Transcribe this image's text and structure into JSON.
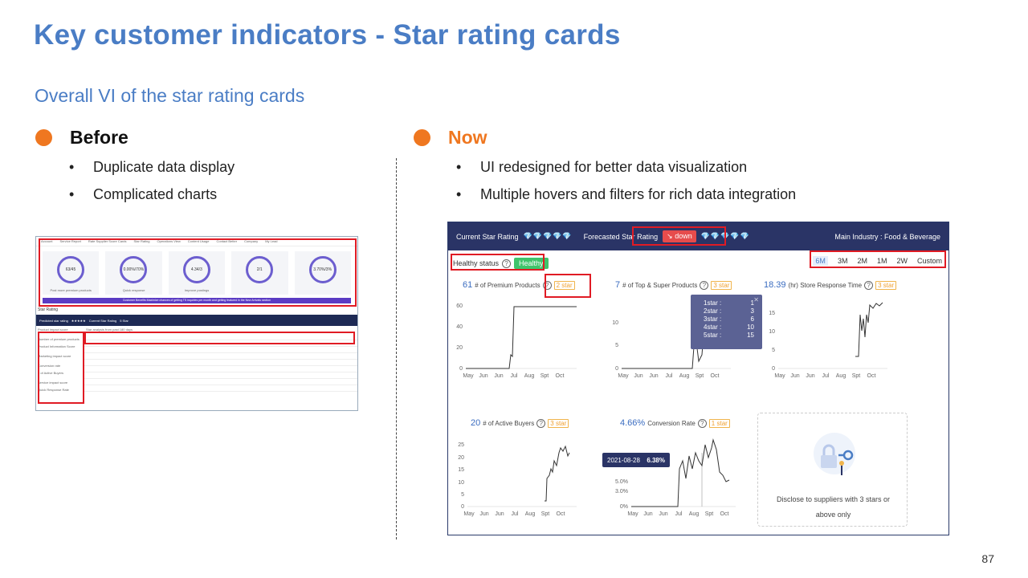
{
  "slide": {
    "title": "Key customer indicators - Star rating cards",
    "subtitle": "Overall VI of the star rating cards",
    "page_number": "87"
  },
  "before": {
    "heading": "Before",
    "bullets": [
      "Duplicate data display",
      "Complicated charts"
    ],
    "screenshot": {
      "nav": [
        "Account",
        "Service Report",
        "Rate Supplier Score Cards",
        "Star Rating",
        "Operations View",
        "Content Usage",
        "Contact Better",
        "Company",
        "My Lead"
      ],
      "kpis": [
        {
          "value": "63/45",
          "label": "Post more premium products"
        },
        {
          "value": "0.00%/70%",
          "label": "Quick response"
        },
        {
          "value": "4.34/3",
          "label": "Improve postings"
        },
        {
          "value": "2/1",
          "label": ""
        },
        {
          "value": "3.70%/3%",
          "label": ""
        }
      ],
      "banner": "Customer Benefits Maximize chances of getting TS inquiries per month and getting featured in the New Arrivals section",
      "section_title": "Star Rating",
      "predicted_label": "Predicted star rating",
      "predicted_stars": "★★★★★",
      "current_label": "Current Star Rating",
      "current_value": "5 Star",
      "left_items": [
        "Product impact score",
        "Number of premium products",
        "Product Information Score",
        "Marketing impact score",
        "Conversion rate",
        "# of Active Buyers",
        "Service impact score",
        "Quick Response Rate"
      ],
      "table_title": "Star analysis from past 180 days"
    }
  },
  "now": {
    "heading": "Now",
    "bullets": [
      "UI redesigned for better data visualization",
      "Multiple hovers and filters for rich data integration"
    ],
    "screenshot": {
      "current_label": "Current Star Rating",
      "current_diamonds_on": "💎💎",
      "current_diamonds_off": "💎💎💎",
      "forecast_label": "Forecasted Star Rating",
      "down_label": "down",
      "forecast_diamonds_on": "💎",
      "forecast_diamonds_off": "💎💎💎💎",
      "industry": "Main Industry : Food & Beverage",
      "healthy_label": "Healthy status",
      "healthy_badge": "Healthy",
      "filters": [
        "6M",
        "3M",
        "2M",
        "1M",
        "2W",
        "Custom"
      ],
      "tooltip": {
        "rows": [
          {
            "k": "1star :",
            "v": "1"
          },
          {
            "k": "2star :",
            "v": "3"
          },
          {
            "k": "3star :",
            "v": "6"
          },
          {
            "k": "4star :",
            "v": "10"
          },
          {
            "k": "5star :",
            "v": "15"
          }
        ]
      },
      "tooltip2": {
        "date": "2021-08-28",
        "value": "6.38%"
      },
      "disclose_msg": "Disclose to suppliers with 3 stars or above only",
      "months": [
        "May",
        "Jun",
        "Jun",
        "Jul",
        "Aug",
        "Spt",
        "Oct"
      ],
      "cards": [
        {
          "value": "61",
          "label": "# of Premium Products",
          "star": "2 star",
          "yticks": [
            "60",
            "40",
            "20",
            "0"
          ]
        },
        {
          "value": "7",
          "label": "# of Top & Super Products",
          "star": "3 star",
          "yticks": [
            "10",
            "5",
            "0"
          ]
        },
        {
          "value": "18.39",
          "label": "(hr) Store Response Time",
          "star": "3 star",
          "yticks": [
            "15",
            "10",
            "5",
            "0"
          ]
        },
        {
          "value": "20",
          "label": "# of Active Buyers",
          "star": "3 star",
          "yticks": [
            "25",
            "20",
            "15",
            "10",
            "5",
            "0"
          ]
        },
        {
          "value": "4.66%",
          "label": "Conversion Rate",
          "star": "1 star",
          "yticks": [
            "5.0%",
            "3.0%",
            "0%"
          ]
        }
      ]
    }
  }
}
